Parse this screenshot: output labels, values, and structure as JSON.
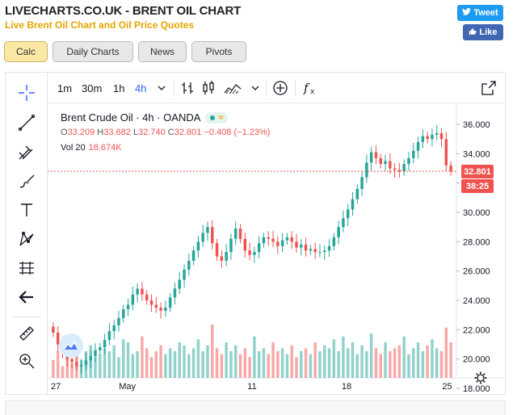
{
  "header": {
    "title": "LIVECHARTS.CO.UK - BRENT OIL CHART",
    "subtitle": "Live Brent Oil Chart and Oil Price Quotes"
  },
  "social": {
    "tweet_label": "Tweet",
    "like_label": "Like"
  },
  "tabs": [
    {
      "label": "Calc",
      "active": true
    },
    {
      "label": "Daily Charts",
      "active": false
    },
    {
      "label": "News",
      "active": false
    },
    {
      "label": "Pivots",
      "active": false
    }
  ],
  "toolbar": {
    "intervals": [
      "1m",
      "30m",
      "1h",
      "4h"
    ],
    "active_interval": "4h"
  },
  "left_tools": [
    "crosshair-icon",
    "trend-line-icon",
    "fib-icon",
    "brush-icon",
    "text-icon",
    "pattern-icon",
    "prediction-icon",
    "back-arrow-icon",
    "ruler-icon",
    "zoom-icon"
  ],
  "legend": {
    "symbol": "Brent Crude Oil · 4h · OANDA",
    "open_label": "O",
    "open": "33.209",
    "high_label": "H",
    "high": "33.682",
    "low_label": "L",
    "low": "32.740",
    "close_label": "C",
    "close": "32.801",
    "change": "−0.408 (−1.23%)",
    "vol_label": "Vol 20",
    "vol_value": "18.674K"
  },
  "price_tags": {
    "last": "32.801",
    "countdown": "38:25"
  },
  "colors": {
    "up": "#26a69a",
    "down": "#ef5350",
    "accent": "#2962ff",
    "subtitle": "#e5a500"
  },
  "chart_data": {
    "type": "candlestick",
    "title": "Brent Crude Oil · 4h · OANDA",
    "y_ticks": [
      "36.000",
      "34.000",
      "32.000",
      "30.000",
      "28.000",
      "26.000",
      "24.000",
      "22.000",
      "20.000",
      "18.000"
    ],
    "ylim": [
      18,
      36.5
    ],
    "x_ticks": [
      "27",
      "May",
      "11",
      "18",
      "25"
    ],
    "close_series": [
      21.8,
      21.0,
      20.4,
      20.0,
      19.8,
      19.5,
      19.6,
      19.9,
      20.2,
      20.6,
      20.8,
      21.3,
      21.9,
      22.3,
      22.8,
      23.4,
      23.7,
      24.4,
      24.8,
      24.4,
      24.0,
      23.7,
      23.5,
      23.3,
      23.5,
      24.2,
      24.8,
      25.4,
      26.1,
      26.7,
      27.4,
      28.0,
      28.6,
      29.0,
      27.9,
      27.0,
      26.7,
      27.3,
      28.2,
      28.9,
      28.2,
      27.4,
      27.1,
      27.3,
      27.9,
      28.3,
      28.2,
      28.0,
      27.7,
      28.1,
      28.3,
      28.0,
      27.6,
      27.8,
      27.4,
      27.5,
      27.3,
      27.3,
      27.4,
      27.7,
      28.3,
      29.0,
      29.6,
      30.2,
      30.9,
      31.6,
      32.4,
      33.4,
      34.1,
      33.7,
      33.3,
      33.5,
      33.0,
      32.9,
      32.8,
      33.3,
      33.7,
      34.2,
      34.8,
      35.2,
      35.0,
      35.3,
      35.4,
      35.0,
      33.2,
      32.8
    ],
    "volume_series": [
      6,
      9,
      4,
      12,
      5,
      8,
      6,
      9,
      11,
      7,
      8,
      10,
      9,
      11,
      7,
      13,
      12,
      8,
      9,
      14,
      10,
      7,
      9,
      11,
      8,
      10,
      9,
      12,
      11,
      8,
      10,
      13,
      9,
      11,
      18,
      10,
      8,
      12,
      9,
      11,
      8,
      10,
      7,
      14,
      9,
      10,
      8,
      12,
      9,
      10,
      8,
      11,
      7,
      9,
      10,
      8,
      12,
      9,
      11,
      10,
      13,
      9,
      14,
      10,
      12,
      8,
      11,
      9,
      15,
      10,
      8,
      12,
      9,
      10,
      11,
      14,
      8,
      10,
      12,
      9,
      11,
      13,
      10,
      9,
      17,
      12
    ]
  }
}
